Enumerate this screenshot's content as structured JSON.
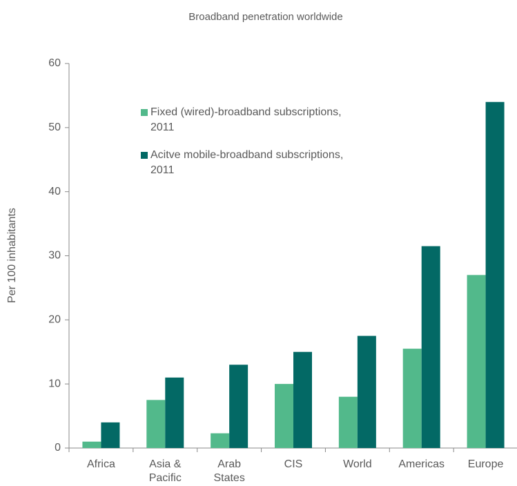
{
  "chart_data": {
    "type": "bar",
    "title": "Broadband penetration worldwide",
    "ylabel": "Per 100 inhabitants",
    "categories": [
      "Africa",
      "Asia & Pacific",
      "Arab States",
      "CIS",
      "World",
      "Americas",
      "Europe"
    ],
    "series": [
      {
        "name": "Fixed (wired)-broadband subscriptions, 2011",
        "color": "#52b98b",
        "values": [
          1,
          7.5,
          2.3,
          10,
          8,
          15.5,
          27
        ]
      },
      {
        "name": "Acitve mobile-broadband subscriptions, 2011",
        "color": "#036965",
        "values": [
          4,
          11,
          13,
          15,
          17.5,
          31.5,
          54
        ]
      }
    ],
    "ylim": [
      0,
      60
    ],
    "yticks": [
      0,
      10,
      20,
      30,
      40,
      50,
      60
    ]
  }
}
